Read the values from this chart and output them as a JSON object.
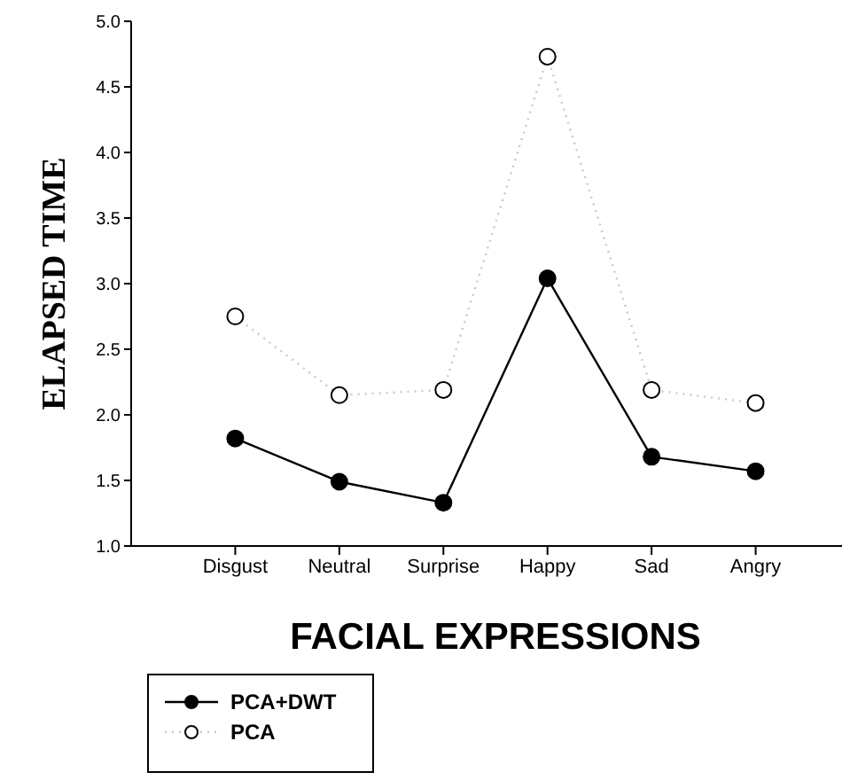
{
  "chart_data": {
    "type": "line",
    "xlabel": "FACIAL EXPRESSIONS",
    "ylabel": "ELAPSED TIME",
    "categories": [
      "Disgust",
      "Neutral",
      "Surprise",
      "Happy",
      "Sad",
      "Angry"
    ],
    "series": [
      {
        "name": "PCA+DWT",
        "color": "#000000",
        "line_style": "solid",
        "values": [
          1.82,
          1.49,
          1.33,
          3.04,
          1.68,
          1.57
        ]
      },
      {
        "name": "PCA",
        "color": "#c8c8c8",
        "line_style": "dotted",
        "values": [
          2.75,
          2.15,
          2.19,
          4.73,
          2.19,
          2.09
        ]
      }
    ],
    "ylim": [
      1.0,
      5.0
    ],
    "yticks": [
      {
        "value": 1,
        "label": "1.0"
      },
      {
        "value": 1.5,
        "label": "1.5"
      },
      {
        "value": 2,
        "label": "2.0"
      },
      {
        "value": 2.5,
        "label": "2.5"
      },
      {
        "value": 3,
        "label": "3.0"
      },
      {
        "value": 3.5,
        "label": "3.5"
      },
      {
        "value": 4,
        "label": "4.0"
      },
      {
        "value": 4.5,
        "label": "4.5"
      },
      {
        "value": 5,
        "label": "5.0"
      }
    ],
    "grid": false,
    "legend": "bottom left",
    "marker": "circle"
  }
}
